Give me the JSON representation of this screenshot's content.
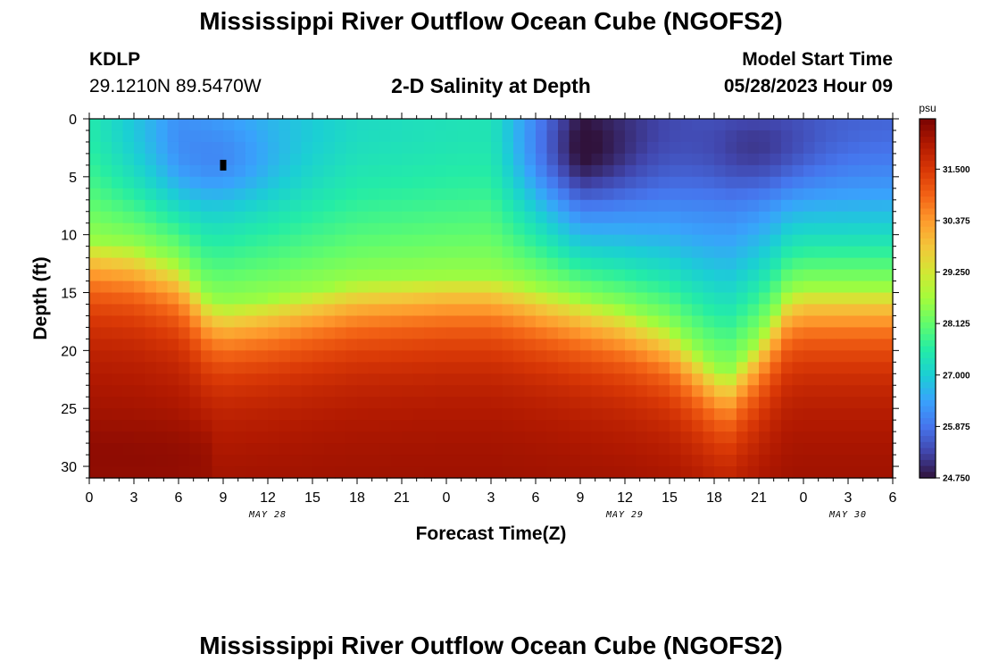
{
  "header": {
    "title": "Mississippi River Outflow Ocean Cube (NGOFS2)",
    "station": "KDLP",
    "coordinates": "29.1210N  89.5470W",
    "subtitle": "2-D Salinity at Depth",
    "model_start_label": "Model Start Time",
    "model_start_value": "05/28/2023 Hour 09",
    "bottom_title": "Mississippi River Outflow Ocean Cube (NGOFS2)"
  },
  "chart_data": {
    "type": "heatmap",
    "xlabel": "Forecast Time(Z)",
    "ylabel": "Depth (ft)",
    "x_tick_labels": [
      "0",
      "3",
      "6",
      "9",
      "12",
      "15",
      "18",
      "21",
      "0",
      "3",
      "6",
      "9",
      "12",
      "15",
      "18",
      "21",
      "0",
      "3",
      "6"
    ],
    "x_range_hours": [
      0,
      54
    ],
    "date_labels": [
      {
        "label": "MAY 28",
        "at_hour": 12
      },
      {
        "label": "MAY 29",
        "at_hour": 36
      },
      {
        "label": "MAY 30",
        "at_hour": 51
      }
    ],
    "y_ticks": [
      0,
      5,
      10,
      15,
      20,
      25,
      30
    ],
    "y_range": [
      0,
      31
    ],
    "y_inverted": true,
    "colorbar": {
      "unit": "psu",
      "tick_labels": [
        "31.500",
        "30.375",
        "29.250",
        "28.125",
        "27.000",
        "25.875",
        "24.750"
      ],
      "tick_values": [
        31.5,
        30.375,
        29.25,
        28.125,
        27.0,
        25.875,
        24.75
      ],
      "range": [
        24.75,
        32.6
      ]
    },
    "colors": [
      "#30123b",
      "#4145ab",
      "#4675ed",
      "#39a2fc",
      "#1bcfd4",
      "#24eca6",
      "#61fc6c",
      "#a4fc3b",
      "#d1e834",
      "#f3c63a",
      "#fe9b2d",
      "#f36315",
      "#d93806",
      "#b11901",
      "#7a0402"
    ],
    "halocline_depth_ft": [
      {
        "hour": 0,
        "depth": 10.5
      },
      {
        "hour": 3,
        "depth": 11
      },
      {
        "hour": 6,
        "depth": 12.5
      },
      {
        "hour": 8,
        "depth": 15.5
      },
      {
        "hour": 9,
        "depth": 16
      },
      {
        "hour": 12,
        "depth": 15.5
      },
      {
        "hour": 18,
        "depth": 14
      },
      {
        "hour": 24,
        "depth": 13.5
      },
      {
        "hour": 27,
        "depth": 13.5
      },
      {
        "hour": 30,
        "depth": 14.5
      },
      {
        "hour": 33,
        "depth": 15.5
      },
      {
        "hour": 36,
        "depth": 16.5
      },
      {
        "hour": 39,
        "depth": 18
      },
      {
        "hour": 42,
        "depth": 21.5
      },
      {
        "hour": 43,
        "depth": 22
      },
      {
        "hour": 45,
        "depth": 19
      },
      {
        "hour": 47,
        "depth": 15
      },
      {
        "hour": 48,
        "depth": 14.5
      },
      {
        "hour": 51,
        "depth": 14.5
      },
      {
        "hour": 54,
        "depth": 14.5
      }
    ],
    "fresh_cores": [
      {
        "hour": 9,
        "depth": 4,
        "salinity": 25.3
      },
      {
        "hour": 33,
        "depth": 3.5,
        "salinity": 24.8
      },
      {
        "hour": 45,
        "depth": 3,
        "salinity": 25.2
      }
    ],
    "surface_salinity_profile": [
      {
        "hour": 0,
        "salinity": 27.5
      },
      {
        "hour": 6,
        "salinity": 26.3
      },
      {
        "hour": 18,
        "salinity": 27.2
      },
      {
        "hour": 27,
        "salinity": 27.4
      },
      {
        "hour": 33,
        "salinity": 25.0
      },
      {
        "hour": 42,
        "salinity": 25.6
      },
      {
        "hour": 54,
        "salinity": 25.7
      }
    ],
    "bottom_salinity": 32.3
  }
}
